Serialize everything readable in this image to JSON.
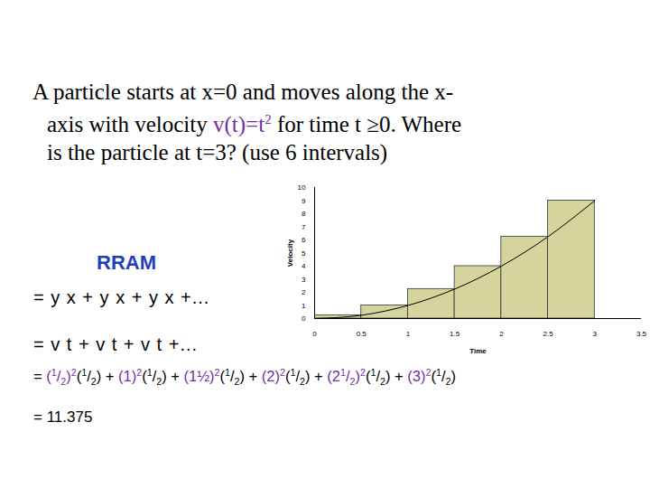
{
  "slide": {
    "question": [
      [
        {
          "text": "A particle starts at x=0 and moves along the x-",
          "color": "#000000"
        }
      ],
      [
        {
          "text": "axis with velocity ",
          "color": "#000000"
        },
        {
          "text": "v(t)=t",
          "color": "#7030a0"
        },
        {
          "text": "2",
          "color": "#7030a0",
          "sup": true
        },
        {
          "text": " for time t ≥0.  Where",
          "color": "#000000"
        }
      ],
      [
        {
          "text": "is the particle at t=3? (use 6 intervals)",
          "color": "#000000"
        }
      ]
    ],
    "method": "RRAM",
    "steps": [
      "= y x + y x + y x +...",
      "= v t + v t + v t +..."
    ],
    "sum_prefix": "=",
    "sum_joiner": "+",
    "sum_terms": [
      {
        "base": "(1/2)",
        "exp": "2",
        "width": "(1/2)"
      },
      {
        "base": "(1)",
        "exp": "2",
        "width": "(1/2)"
      },
      {
        "base": "(1½)",
        "exp": "2",
        "width": "(1/2)"
      },
      {
        "base": "(2)",
        "exp": "2",
        "width": "(1/2)"
      },
      {
        "base": "(21/2)",
        "exp": "2",
        "width": "(1/2)"
      },
      {
        "base": "(3)",
        "exp": "2",
        "width": "(1/2)"
      }
    ],
    "term_color": "#7030a0",
    "result": "= 11.375"
  },
  "chart_data": {
    "type": "bar",
    "bins": [
      0,
      0.5,
      1,
      1.5,
      2,
      2.5,
      3
    ],
    "values": [
      0.25,
      1,
      2.25,
      4,
      6.25,
      9
    ],
    "color": "#d4d49c",
    "curve": {
      "type": "line",
      "x": [
        0,
        0.5,
        1,
        1.5,
        2,
        2.5,
        3
      ],
      "values": [
        0,
        0.25,
        1,
        2.25,
        4,
        6.25,
        9
      ],
      "color": "#000000"
    },
    "xlabel": "Time",
    "ylabel": "Velocity",
    "xlim": [
      0,
      3.5
    ],
    "xticks": [
      0,
      0.5,
      1,
      1.5,
      2,
      2.5,
      3,
      3.5
    ],
    "ylim": [
      0,
      10
    ],
    "yticks": [
      0,
      1,
      2,
      3,
      4,
      5,
      6,
      7,
      8,
      9,
      10
    ],
    "grid": false
  }
}
